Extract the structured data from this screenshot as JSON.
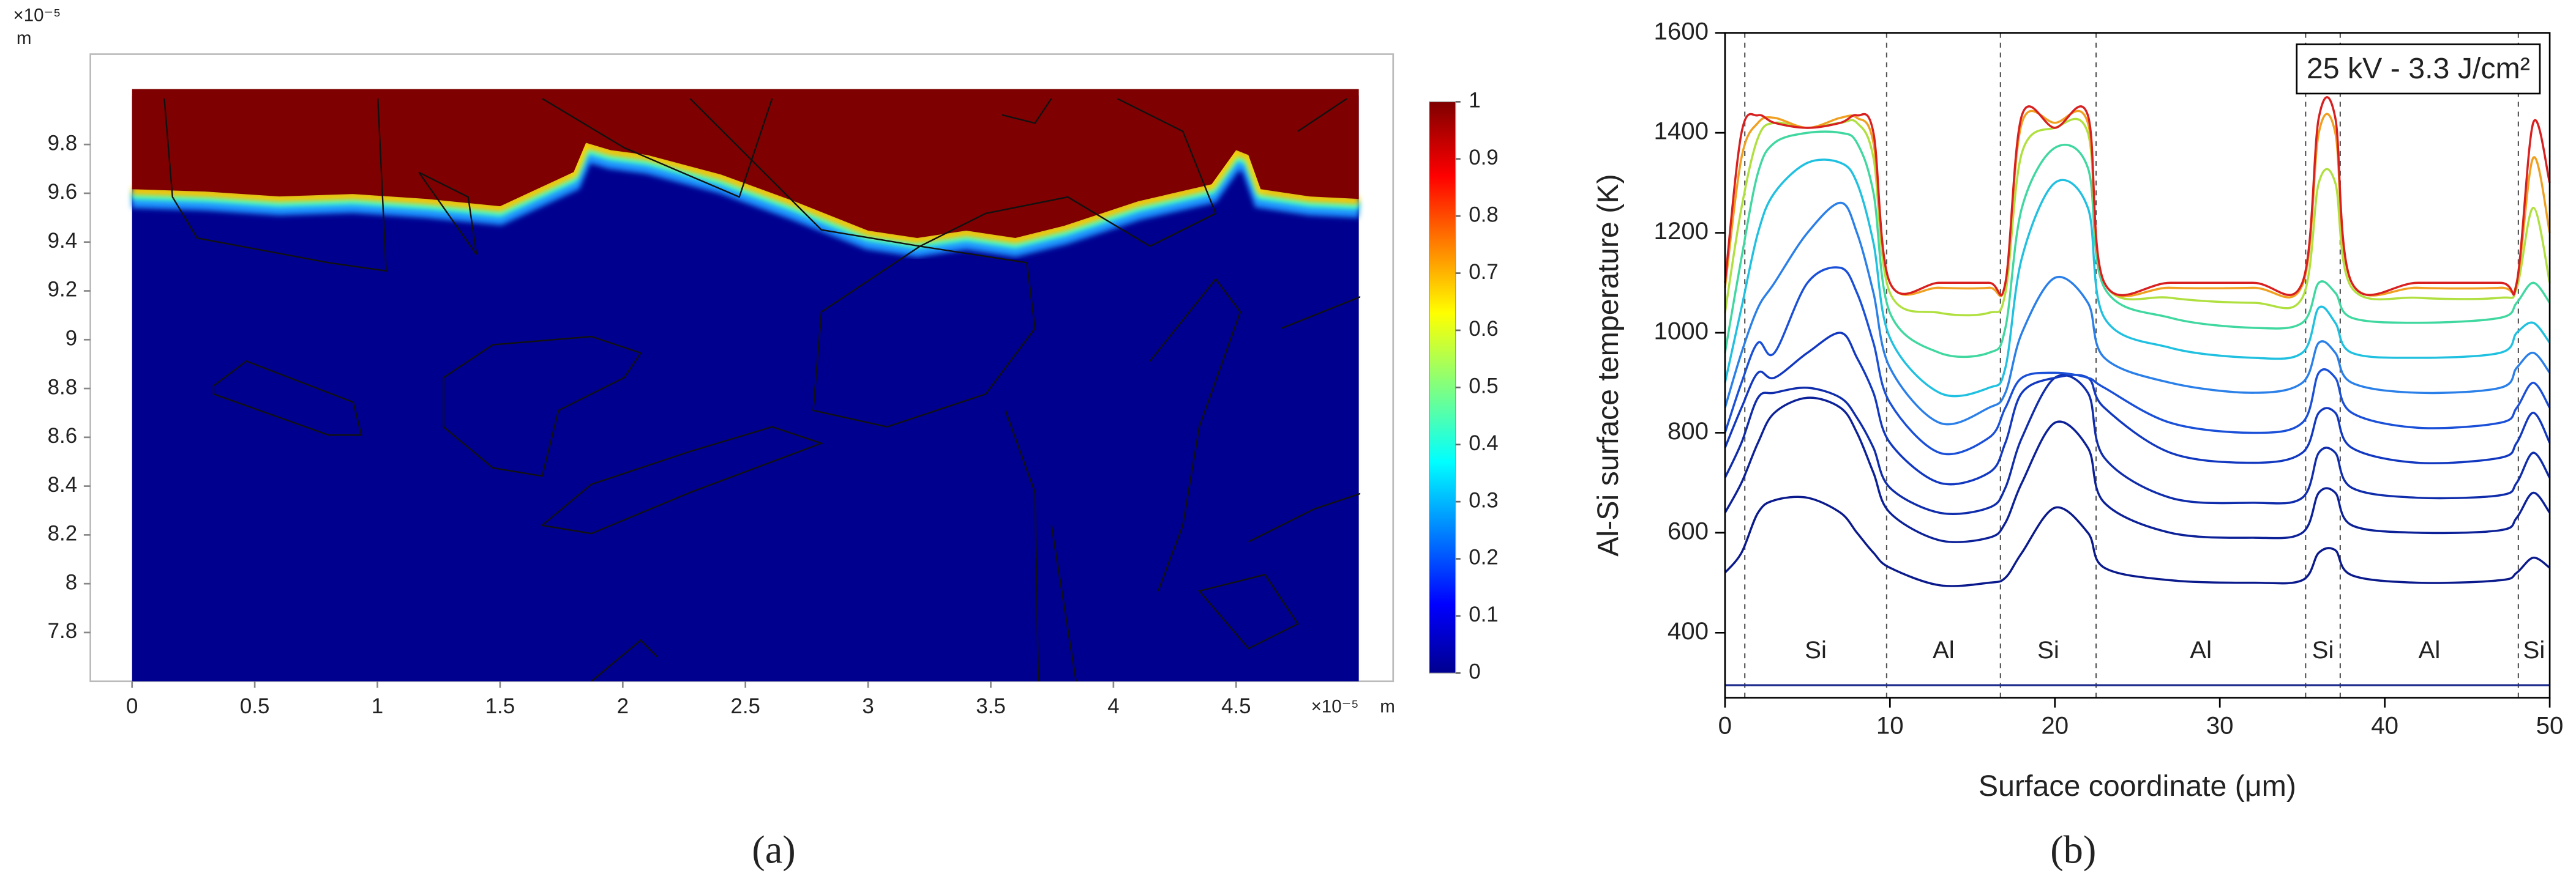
{
  "chart_data": [
    {
      "type": "field_map",
      "panel_label": "(a)",
      "x_exponent": "×10⁻⁵",
      "x_unit": "m",
      "y_exponent": "×10⁻⁵",
      "y_unit": "m",
      "xlim": [
        -0.17,
        5.14
      ],
      "ylim": [
        7.6,
        10.17
      ],
      "xticks": [
        0,
        0.5,
        1,
        1.5,
        2,
        2.5,
        3,
        3.5,
        4,
        4.5
      ],
      "yticks": [
        7.8,
        8,
        8.2,
        8.4,
        8.6,
        8.8,
        9,
        9.2,
        9.4,
        9.6,
        9.8
      ],
      "domain": {
        "x": [
          0,
          5
        ],
        "y": [
          7.6,
          10
        ]
      },
      "interface": {
        "x": [
          0,
          0.3,
          0.6,
          0.9,
          1.2,
          1.5,
          1.8,
          1.85,
          1.95,
          2.1,
          2.4,
          2.7,
          3.0,
          3.2,
          3.4,
          3.6,
          3.8,
          4.1,
          4.4,
          4.5,
          4.55,
          4.6,
          4.8,
          5.0
        ],
        "y": [
          9.59,
          9.58,
          9.56,
          9.57,
          9.55,
          9.52,
          9.66,
          9.78,
          9.75,
          9.73,
          9.65,
          9.54,
          9.42,
          9.39,
          9.42,
          9.39,
          9.44,
          9.54,
          9.61,
          9.75,
          9.73,
          9.59,
          9.56,
          9.55
        ]
      },
      "low_color": "#00008f",
      "high_color": "#7f0000",
      "colorbar": {
        "lim": [
          0,
          1
        ],
        "ticks": [
          0,
          0.1,
          0.2,
          0.3,
          0.4,
          0.5,
          0.6,
          0.7,
          0.8,
          0.9,
          1
        ]
      }
    },
    {
      "type": "line",
      "panel_label": "(b)",
      "annotation": "25 kV - 3.3 J/cm²",
      "x_label": "Surface coordinate (μm)",
      "y_label": "Al-Si surface temperature (K)",
      "xlim": [
        0,
        50
      ],
      "ylim": [
        270,
        1600
      ],
      "xticks": [
        0,
        10,
        20,
        30,
        40,
        50
      ],
      "yticks": [
        400,
        600,
        800,
        1000,
        1200,
        1400,
        1600
      ],
      "x": [
        0,
        1,
        2,
        3,
        5,
        7,
        8,
        9,
        10,
        13,
        16,
        17,
        18,
        20,
        22,
        23,
        27,
        32,
        35,
        36,
        37,
        38,
        42,
        47,
        48,
        49,
        50
      ],
      "series": [
        {
          "color": "#0a1a8c",
          "values": [
            520,
            560,
            640,
            665,
            670,
            640,
            600,
            560,
            530,
            495,
            500,
            510,
            560,
            650,
            600,
            530,
            505,
            500,
            505,
            560,
            565,
            515,
            500,
            505,
            520,
            550,
            530
          ]
        },
        {
          "color": "#0c2198",
          "values": [
            640,
            700,
            780,
            840,
            870,
            850,
            800,
            720,
            640,
            585,
            590,
            620,
            700,
            820,
            770,
            660,
            600,
            590,
            600,
            680,
            680,
            615,
            600,
            605,
            630,
            680,
            640
          ]
        },
        {
          "color": "#0f2cab",
          "values": [
            710,
            780,
            870,
            880,
            890,
            870,
            830,
            770,
            690,
            640,
            650,
            690,
            790,
            910,
            880,
            750,
            670,
            660,
            670,
            760,
            760,
            690,
            670,
            675,
            700,
            760,
            710
          ]
        },
        {
          "color": "#1238c0",
          "values": [
            770,
            850,
            920,
            910,
            960,
            1000,
            950,
            880,
            780,
            700,
            720,
            780,
            880,
            910,
            910,
            850,
            760,
            740,
            760,
            840,
            840,
            770,
            740,
            750,
            780,
            840,
            780
          ]
        },
        {
          "color": "#1a4fd8",
          "values": [
            800,
            900,
            980,
            960,
            1100,
            1130,
            1080,
            980,
            860,
            760,
            790,
            850,
            910,
            920,
            910,
            890,
            820,
            800,
            820,
            920,
            910,
            840,
            810,
            820,
            850,
            900,
            850
          ]
        },
        {
          "color": "#2a7fe8",
          "values": [
            850,
            960,
            1050,
            1100,
            1200,
            1260,
            1200,
            1080,
            930,
            820,
            850,
            880,
            1000,
            1110,
            1060,
            950,
            900,
            880,
            900,
            980,
            960,
            900,
            880,
            890,
            930,
            960,
            920
          ]
        },
        {
          "color": "#20c0e0",
          "values": [
            900,
            1050,
            1200,
            1280,
            1340,
            1340,
            1300,
            1180,
            990,
            880,
            890,
            930,
            1150,
            1300,
            1250,
            1030,
            970,
            950,
            960,
            1050,
            1020,
            960,
            950,
            960,
            1000,
            1020,
            980
          ]
        },
        {
          "color": "#40d8a0",
          "values": [
            960,
            1150,
            1320,
            1380,
            1400,
            1400,
            1380,
            1280,
            1040,
            960,
            960,
            1010,
            1250,
            1370,
            1330,
            1090,
            1030,
            1010,
            1020,
            1100,
            1080,
            1030,
            1020,
            1030,
            1060,
            1100,
            1060
          ]
        },
        {
          "color": "#b0e040",
          "values": [
            1040,
            1250,
            1390,
            1420,
            1410,
            1420,
            1420,
            1350,
            1080,
            1040,
            1040,
            1080,
            1360,
            1410,
            1400,
            1100,
            1070,
            1060,
            1070,
            1300,
            1300,
            1090,
            1070,
            1070,
            1090,
            1250,
            1100
          ]
        },
        {
          "color": "#f0a020",
          "values": [
            1090,
            1350,
            1420,
            1430,
            1410,
            1430,
            1430,
            1380,
            1100,
            1090,
            1090,
            1100,
            1420,
            1420,
            1420,
            1100,
            1090,
            1090,
            1095,
            1400,
            1400,
            1100,
            1090,
            1090,
            1100,
            1350,
            1200
          ]
        },
        {
          "color": "#d82020",
          "values": [
            1100,
            1400,
            1435,
            1420,
            1410,
            1420,
            1435,
            1400,
            1100,
            1100,
            1100,
            1100,
            1435,
            1410,
            1435,
            1100,
            1100,
            1100,
            1100,
            1430,
            1430,
            1100,
            1100,
            1100,
            1100,
            1420,
            1300
          ]
        }
      ],
      "baseline": 295,
      "baseline_color": "#1a2a8c",
      "dividers": [
        1.2,
        9.8,
        16.7,
        22.5,
        35.2,
        37.3,
        48.1
      ],
      "region_labels": [
        "Si",
        "Al",
        "Si",
        "Al",
        "Si",
        "Al",
        "Si"
      ]
    }
  ]
}
